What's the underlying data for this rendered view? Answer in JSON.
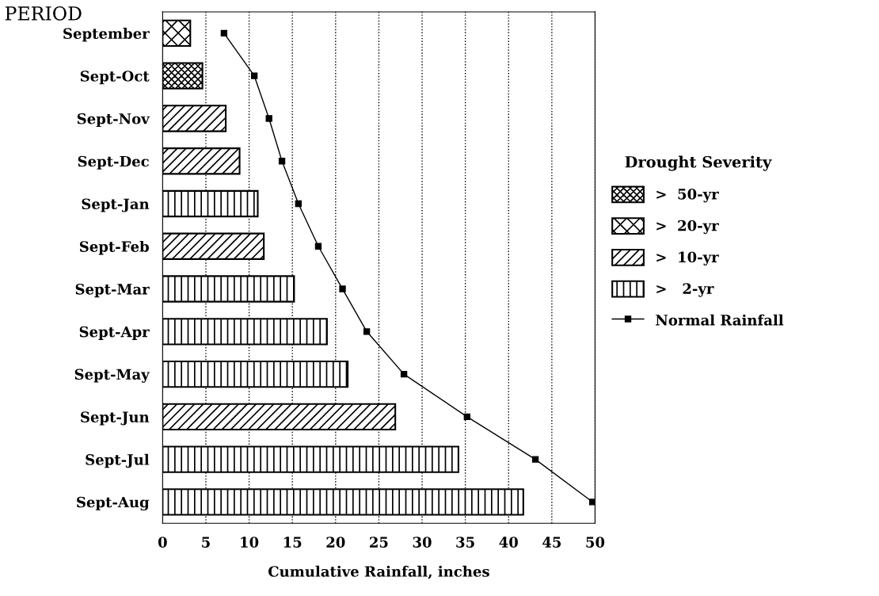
{
  "chart_data": {
    "type": "bar",
    "orientation": "horizontal",
    "ylabel": "PERIOD",
    "xlabel": "Cumulative Rainfall, inches",
    "legend_title": "Drought Severity",
    "categories": [
      "September",
      "Sept-Oct",
      "Sept-Nov",
      "Sept-Dec",
      "Sept-Jan",
      "Sept-Feb",
      "Sept-Mar",
      "Sept-Apr",
      "Sept-May",
      "Sept-Jun",
      "Sept-Jul",
      "Sept-Aug"
    ],
    "series": [
      {
        "name": ">  50-yr",
        "color": "#000000",
        "values": [
          null,
          4.6,
          null,
          null,
          null,
          null,
          null,
          null,
          null,
          null,
          null,
          null
        ]
      },
      {
        "name": ">  20-yr",
        "color": "#000000",
        "values": [
          3.2,
          null,
          null,
          null,
          null,
          null,
          null,
          null,
          null,
          null,
          null,
          null
        ]
      },
      {
        "name": ">  10-yr",
        "color": "#000000",
        "values": [
          null,
          null,
          7.3,
          8.9,
          null,
          11.7,
          null,
          null,
          null,
          26.9,
          null,
          null
        ]
      },
      {
        "name": ">   2-yr",
        "color": "#000000",
        "values": [
          null,
          null,
          null,
          null,
          11.0,
          null,
          15.2,
          19.0,
          21.4,
          null,
          34.2,
          41.7
        ]
      },
      {
        "name": "Normal Rainfall",
        "type": "line",
        "color": "#000000",
        "values": [
          7.1,
          10.6,
          12.3,
          13.8,
          15.7,
          18.0,
          20.8,
          23.6,
          27.9,
          35.2,
          43.1,
          49.7
        ]
      }
    ],
    "xlim": [
      0,
      50
    ],
    "xticks": [
      0,
      5,
      10,
      15,
      20,
      25,
      30,
      35,
      40,
      45,
      50
    ],
    "grid": "x",
    "legend": "right",
    "marker": "square",
    "line_style": "solid"
  }
}
